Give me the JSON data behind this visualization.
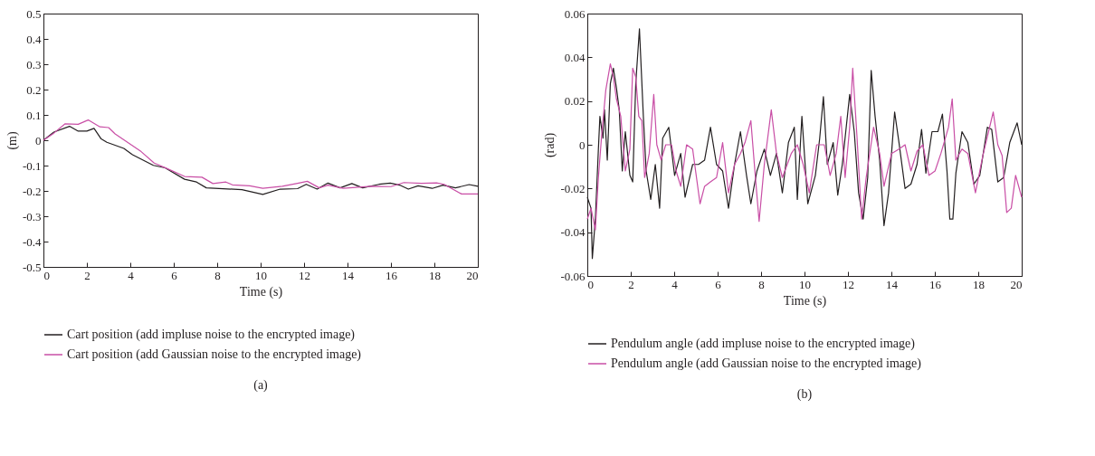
{
  "chart_data": [
    {
      "type": "line",
      "xlabel": "Time (s)",
      "ylabel": "(m)",
      "xlim": [
        0,
        20
      ],
      "ylim": [
        -0.5,
        0.5
      ],
      "xticks": [
        0,
        2,
        4,
        6,
        8,
        10,
        12,
        14,
        16,
        18,
        20
      ],
      "yticks": [
        -0.5,
        -0.4,
        -0.3,
        -0.2,
        -0.1,
        0,
        0.1,
        0.2,
        0.3,
        0.4,
        0.5
      ],
      "grid": false,
      "legend": "bottom",
      "annotations": [
        "(a)"
      ],
      "series": [
        {
          "name": "Cart position (add impluse noise to the encrypted image)",
          "color": "#231f20",
          "x": [
            0,
            0.48,
            1.2,
            1.6,
            2.0,
            2.33,
            2.66,
            2.92,
            3.7,
            4.1,
            5.06,
            5.6,
            6.5,
            7.05,
            7.5,
            9.14,
            10.1,
            10.9,
            11.7,
            12.1,
            12.6,
            13.1,
            13.66,
            14.2,
            14.7,
            15.45,
            15.97,
            16.4,
            16.8,
            17.25,
            17.9,
            18.4,
            18.97,
            19.6,
            20
          ],
          "values": [
            0,
            0.032,
            0.055,
            0.036,
            0.036,
            0.047,
            0.005,
            -0.008,
            -0.032,
            -0.057,
            -0.099,
            -0.109,
            -0.154,
            -0.165,
            -0.188,
            -0.195,
            -0.214,
            -0.193,
            -0.191,
            -0.174,
            -0.193,
            -0.169,
            -0.188,
            -0.171,
            -0.188,
            -0.174,
            -0.169,
            -0.177,
            -0.193,
            -0.18,
            -0.19,
            -0.177,
            -0.188,
            -0.175,
            -0.182
          ]
        },
        {
          "name": "Cart position (add Gaussian noise to the encrypted image)",
          "color": "#c94fa6",
          "x": [
            0,
            0.48,
            1.0,
            1.6,
            2.06,
            2.6,
            3.0,
            3.3,
            3.7,
            4.5,
            5.1,
            5.7,
            6.5,
            7.3,
            7.8,
            8.4,
            8.7,
            9.5,
            10.1,
            11.0,
            11.7,
            12.15,
            12.7,
            13.1,
            13.8,
            15.1,
            16.0,
            16.6,
            17.4,
            18.1,
            18.45,
            19.25,
            20
          ],
          "values": [
            0,
            0.028,
            0.065,
            0.063,
            0.08,
            0.053,
            0.05,
            0.025,
            0.002,
            -0.045,
            -0.09,
            -0.112,
            -0.143,
            -0.146,
            -0.171,
            -0.165,
            -0.176,
            -0.18,
            -0.19,
            -0.182,
            -0.17,
            -0.162,
            -0.188,
            -0.177,
            -0.19,
            -0.182,
            -0.183,
            -0.167,
            -0.17,
            -0.168,
            -0.174,
            -0.212,
            -0.212
          ]
        }
      ]
    },
    {
      "type": "line",
      "xlabel": "Time (s)",
      "ylabel": "(rad)",
      "xlim": [
        0,
        20
      ],
      "ylim": [
        -0.06,
        0.06
      ],
      "xticks": [
        0,
        2,
        4,
        6,
        8,
        10,
        12,
        14,
        16,
        18,
        20
      ],
      "yticks": [
        -0.06,
        -0.04,
        -0.02,
        0,
        0.02,
        0.04,
        0.06
      ],
      "grid": false,
      "legend": "bottom",
      "annotations": [
        "(b)"
      ],
      "series": [
        {
          "name": "Pendulum angle (add impluse noise to the encrypted image)",
          "color": "#231f20",
          "x": [
            0,
            0.17,
            0.23,
            0.37,
            0.51,
            0.58,
            0.72,
            0.79,
            0.92,
            1.06,
            1.2,
            1.34,
            1.47,
            1.61,
            1.75,
            1.96,
            2.09,
            2.23,
            2.4,
            2.58,
            2.71,
            2.92,
            3.13,
            3.33,
            3.47,
            3.75,
            4.02,
            4.3,
            4.5,
            4.85,
            5.12,
            5.4,
            5.67,
            5.95,
            6.23,
            6.5,
            6.78,
            7.05,
            7.33,
            7.53,
            7.81,
            8.15,
            8.43,
            8.71,
            8.98,
            9.26,
            9.53,
            9.67,
            9.88,
            10.15,
            10.5,
            10.7,
            10.87,
            11.05,
            11.32,
            11.53,
            11.74,
            12.08,
            12.29,
            12.49,
            12.7,
            12.91,
            13.07,
            13.25,
            13.46,
            13.66,
            13.87,
            14.15,
            14.35,
            14.63,
            14.9,
            15.18,
            15.39,
            15.59,
            15.87,
            16.14,
            16.35,
            16.56,
            16.69,
            16.83,
            16.97,
            17.25,
            17.52,
            17.8,
            18.07,
            18.42,
            18.62,
            18.9,
            19.17,
            19.45,
            19.79,
            20
          ],
          "values": [
            -0.024,
            -0.029,
            -0.052,
            -0.034,
            -0.002,
            0.013,
            0.003,
            0.016,
            -0.007,
            0.028,
            0.035,
            0.026,
            0.016,
            -0.012,
            0.006,
            -0.014,
            -0.017,
            0.028,
            0.053,
            0.013,
            -0.012,
            -0.025,
            -0.009,
            -0.029,
            0.003,
            0.008,
            -0.014,
            -0.004,
            -0.024,
            -0.009,
            -0.009,
            -0.007,
            0.008,
            -0.009,
            -0.012,
            -0.029,
            -0.009,
            0.006,
            -0.014,
            -0.027,
            -0.012,
            -0.002,
            -0.014,
            -0.004,
            -0.022,
            0.001,
            0.008,
            -0.025,
            0.013,
            -0.027,
            -0.014,
            0.003,
            0.022,
            -0.009,
            0.001,
            -0.023,
            -0.009,
            0.023,
            0.006,
            -0.022,
            -0.034,
            -0.015,
            0.034,
            0.013,
            -0.007,
            -0.037,
            -0.022,
            0.015,
            0.001,
            -0.02,
            -0.018,
            -0.009,
            0.007,
            -0.013,
            0.006,
            0.006,
            0.014,
            -0.012,
            -0.034,
            -0.034,
            -0.013,
            0.006,
            0.001,
            -0.018,
            -0.014,
            0.008,
            0.007,
            -0.017,
            -0.015,
            0.001,
            0.01,
            0
          ]
        },
        {
          "name": "Pendulum angle (add Gaussian noise to the encrypted image)",
          "color": "#c94fa6",
          "x": [
            0,
            0.17,
            0.37,
            0.51,
            0.65,
            0.85,
            1.06,
            1.2,
            1.34,
            1.54,
            1.75,
            1.96,
            2.09,
            2.23,
            2.37,
            2.51,
            2.64,
            2.85,
            3.06,
            3.2,
            3.4,
            3.61,
            3.88,
            4.09,
            4.3,
            4.57,
            4.85,
            5.19,
            5.4,
            5.67,
            5.95,
            6.23,
            6.5,
            6.78,
            7.05,
            7.26,
            7.53,
            7.74,
            7.91,
            8.15,
            8.47,
            8.71,
            8.98,
            9.39,
            9.67,
            9.94,
            10.22,
            10.56,
            10.91,
            11.18,
            11.46,
            11.67,
            11.87,
            12.08,
            12.22,
            12.42,
            12.63,
            12.84,
            13.18,
            13.46,
            13.66,
            14.01,
            14.35,
            14.63,
            14.9,
            15.18,
            15.45,
            15.73,
            16.01,
            16.28,
            16.63,
            16.8,
            16.97,
            17.25,
            17.52,
            17.87,
            18.21,
            18.69,
            18.9,
            19.1,
            19.31,
            19.52,
            19.72,
            20
          ],
          "values": [
            -0.034,
            -0.029,
            -0.039,
            -0.015,
            0.003,
            0.025,
            0.037,
            0.031,
            0.021,
            0.013,
            -0.012,
            -0.002,
            0.035,
            0.031,
            0.013,
            0.011,
            -0.015,
            -0.004,
            0.023,
            0,
            -0.007,
            0,
            0,
            -0.012,
            -0.019,
            0,
            -0.002,
            -0.027,
            -0.019,
            -0.017,
            -0.015,
            0.001,
            -0.022,
            -0.009,
            -0.004,
            0.001,
            0.011,
            -0.015,
            -0.035,
            -0.009,
            0.016,
            -0.004,
            -0.015,
            -0.004,
            0,
            -0.009,
            -0.022,
            0,
            0,
            -0.014,
            -0.004,
            0.013,
            -0.015,
            0.008,
            0.035,
            0.003,
            -0.034,
            -0.015,
            0.008,
            -0.004,
            -0.019,
            -0.004,
            -0.002,
            0,
            -0.012,
            -0.003,
            0,
            -0.014,
            -0.012,
            -0.004,
            0.008,
            0.021,
            -0.007,
            -0.002,
            -0.004,
            -0.022,
            -0.005,
            0.015,
            0,
            -0.005,
            -0.031,
            -0.029,
            -0.014,
            -0.024
          ]
        }
      ]
    }
  ]
}
